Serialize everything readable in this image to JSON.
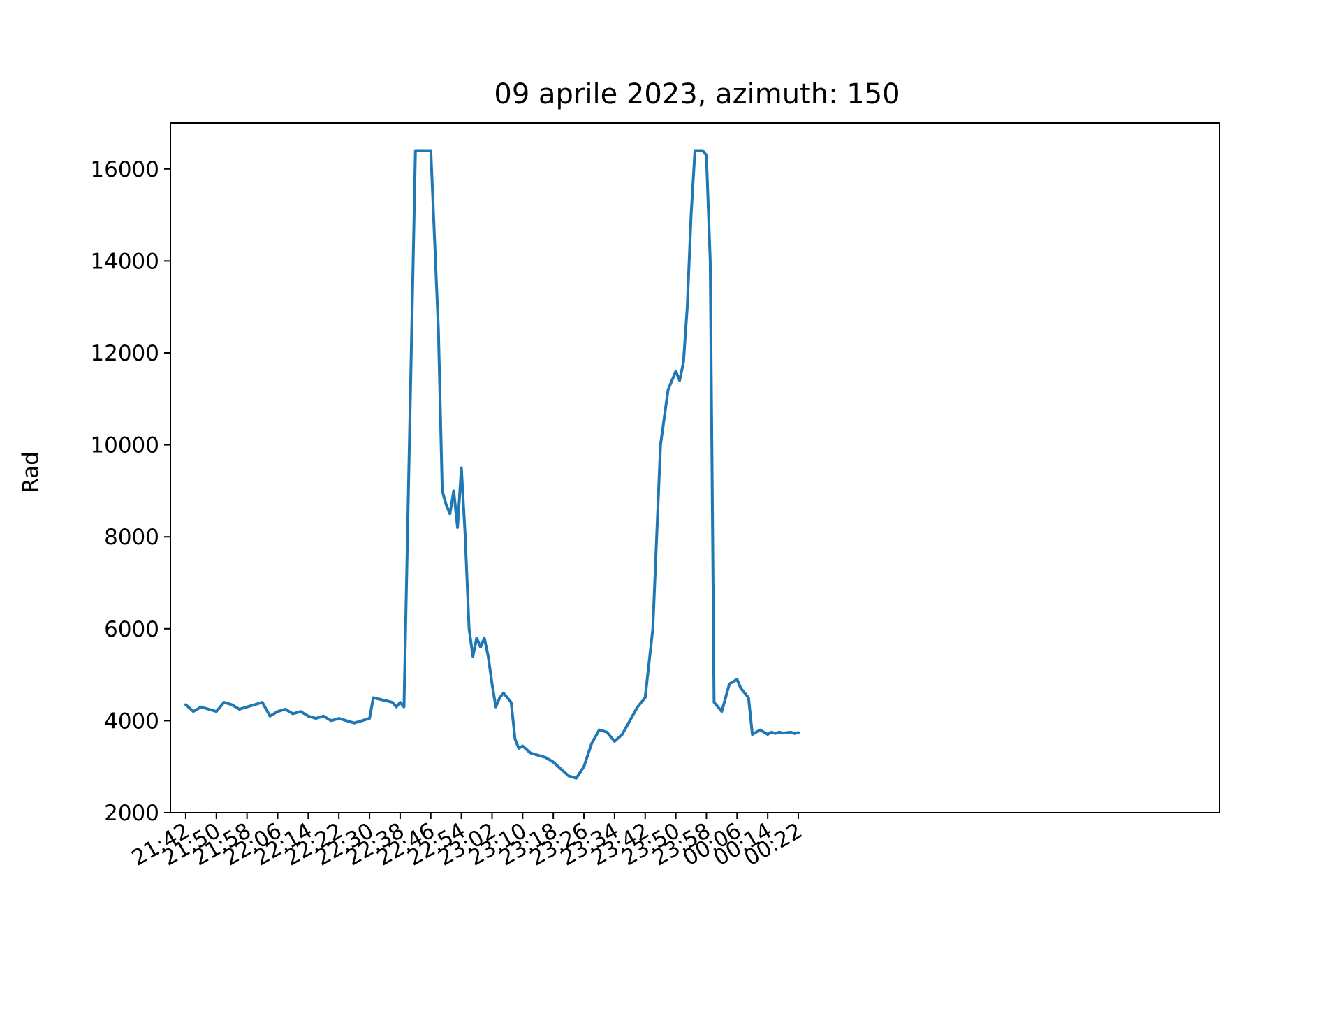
{
  "chart_data": {
    "type": "line",
    "title": "09 aprile 2023, azimuth: 150",
    "xlabel": "",
    "ylabel": "Rad",
    "ylim": [
      2000,
      17000
    ],
    "xlim_minutes": [
      -4,
      270
    ],
    "yticks": [
      2000,
      4000,
      6000,
      8000,
      10000,
      12000,
      14000,
      16000
    ],
    "xticks": [
      "21:42",
      "21:50",
      "21:58",
      "22:06",
      "22:14",
      "22:22",
      "22:30",
      "22:38",
      "22:46",
      "22:54",
      "23:02",
      "23:10",
      "23:18",
      "23:26",
      "23:34",
      "23:42",
      "23:50",
      "23:58",
      "00:06",
      "00:14",
      "00:22"
    ],
    "grid": false,
    "legend": "none",
    "series": [
      {
        "color": "#1f77b4",
        "x": [
          "21:42",
          "21:44",
          "21:46",
          "21:48",
          "21:50",
          "21:52",
          "21:54",
          "21:56",
          "21:58",
          "22:00",
          "22:02",
          "22:04",
          "22:06",
          "22:08",
          "22:10",
          "22:12",
          "22:14",
          "22:16",
          "22:18",
          "22:20",
          "22:22",
          "22:24",
          "22:26",
          "22:28",
          "22:30",
          "22:31",
          "22:36",
          "22:37",
          "22:38",
          "22:39",
          "22:42",
          "22:44",
          "22:46",
          "22:48",
          "22:49",
          "22:50",
          "22:51",
          "22:52",
          "22:53",
          "22:54",
          "22:55",
          "22:56",
          "22:57",
          "22:58",
          "22:59",
          "23:00",
          "23:01",
          "23:02",
          "23:03",
          "23:04",
          "23:05",
          "23:06",
          "23:07",
          "23:08",
          "23:09",
          "23:10",
          "23:12",
          "23:14",
          "23:16",
          "23:18",
          "23:20",
          "23:22",
          "23:24",
          "23:26",
          "23:28",
          "23:30",
          "23:32",
          "23:34",
          "23:36",
          "23:38",
          "23:40",
          "23:42",
          "23:44",
          "23:46",
          "23:48",
          "23:50",
          "23:51",
          "23:52",
          "23:53",
          "23:54",
          "23:55",
          "23:56",
          "23:57",
          "23:58",
          "23:59",
          "00:00",
          "00:02",
          "00:04",
          "00:06",
          "00:07",
          "00:08",
          "00:09",
          "00:10",
          "00:11",
          "00:12",
          "00:13",
          "00:14",
          "00:15",
          "00:16",
          "00:17",
          "00:18",
          "00:19",
          "00:20",
          "00:21",
          "00:22"
        ],
        "y": [
          4350,
          4200,
          4300,
          4250,
          4200,
          4400,
          4350,
          4250,
          4300,
          4350,
          4400,
          4100,
          4200,
          4250,
          4150,
          4200,
          4100,
          4050,
          4100,
          4000,
          4050,
          4000,
          3950,
          4000,
          4050,
          4500,
          4400,
          4300,
          4400,
          4300,
          16400,
          16400,
          16400,
          12500,
          9000,
          8700,
          8500,
          9000,
          8200,
          9500,
          8000,
          6000,
          5400,
          5800,
          5600,
          5800,
          5400,
          4800,
          4300,
          4500,
          4600,
          4500,
          4400,
          3600,
          3400,
          3450,
          3300,
          3250,
          3200,
          3100,
          2950,
          2800,
          2750,
          3000,
          3500,
          3800,
          3750,
          3550,
          3700,
          4000,
          4300,
          4500,
          6000,
          10000,
          11200,
          11600,
          11400,
          11800,
          13000,
          15000,
          16400,
          16400,
          16400,
          16300,
          14000,
          4400,
          4200,
          4800,
          4900,
          4700,
          4600,
          4500,
          3700,
          3750,
          3800,
          3750,
          3700,
          3750,
          3720,
          3750,
          3730,
          3740,
          3750,
          3720,
          3740
        ]
      }
    ]
  }
}
